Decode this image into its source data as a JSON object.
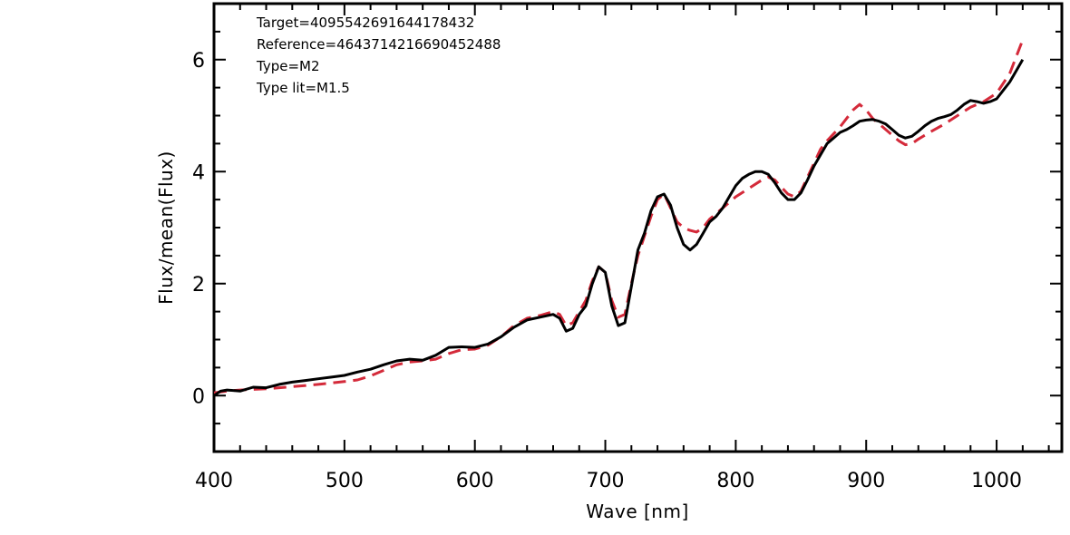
{
  "chart_data": {
    "type": "line",
    "xlabel": "Wave [nm]",
    "ylabel": "Flux/mean(Flux)",
    "xlim": [
      400,
      1050
    ],
    "ylim": [
      -1,
      7
    ],
    "xticks": [
      400,
      500,
      600,
      700,
      800,
      900,
      1000
    ],
    "yticks": [
      0,
      2,
      4,
      6
    ],
    "grid": false,
    "annotations": [
      "Target=4095542691644178432",
      "Reference=4643714216690452488",
      "Type=M2",
      "Type lit=M1.5"
    ],
    "series": [
      {
        "style": "solid",
        "color": "#000000",
        "x": [
          400,
          405,
          410,
          420,
          430,
          440,
          450,
          460,
          470,
          480,
          490,
          500,
          510,
          520,
          530,
          540,
          550,
          560,
          570,
          580,
          590,
          600,
          610,
          620,
          630,
          640,
          650,
          660,
          665,
          670,
          675,
          680,
          685,
          690,
          695,
          700,
          705,
          710,
          715,
          720,
          725,
          730,
          735,
          740,
          745,
          750,
          755,
          760,
          765,
          770,
          775,
          780,
          785,
          790,
          795,
          800,
          805,
          810,
          815,
          820,
          825,
          830,
          835,
          840,
          845,
          850,
          855,
          860,
          865,
          870,
          875,
          880,
          885,
          890,
          895,
          900,
          905,
          910,
          915,
          920,
          925,
          930,
          935,
          940,
          945,
          950,
          955,
          960,
          965,
          970,
          975,
          980,
          985,
          990,
          995,
          1000,
          1005,
          1010,
          1015,
          1020
        ],
        "y": [
          0.0,
          0.08,
          0.1,
          0.08,
          0.15,
          0.14,
          0.2,
          0.24,
          0.27,
          0.3,
          0.33,
          0.36,
          0.42,
          0.47,
          0.55,
          0.62,
          0.65,
          0.63,
          0.72,
          0.86,
          0.87,
          0.86,
          0.92,
          1.05,
          1.22,
          1.35,
          1.4,
          1.45,
          1.38,
          1.15,
          1.2,
          1.45,
          1.6,
          2.0,
          2.3,
          2.2,
          1.6,
          1.25,
          1.3,
          1.95,
          2.6,
          2.9,
          3.3,
          3.55,
          3.6,
          3.4,
          3.0,
          2.7,
          2.6,
          2.7,
          2.9,
          3.1,
          3.2,
          3.35,
          3.55,
          3.75,
          3.88,
          3.95,
          4.0,
          4.0,
          3.95,
          3.8,
          3.62,
          3.5,
          3.5,
          3.62,
          3.85,
          4.1,
          4.3,
          4.5,
          4.6,
          4.7,
          4.75,
          4.82,
          4.9,
          4.92,
          4.93,
          4.9,
          4.85,
          4.75,
          4.65,
          4.6,
          4.63,
          4.72,
          4.82,
          4.9,
          4.95,
          4.98,
          5.02,
          5.1,
          5.2,
          5.27,
          5.25,
          5.22,
          5.25,
          5.3,
          5.45,
          5.6,
          5.8,
          6.0
        ]
      },
      {
        "style": "dashed",
        "color": "#d42a3a",
        "x": [
          400,
          410,
          420,
          440,
          460,
          480,
          500,
          510,
          520,
          530,
          540,
          550,
          560,
          570,
          580,
          590,
          600,
          610,
          620,
          630,
          640,
          650,
          660,
          665,
          670,
          675,
          680,
          685,
          690,
          695,
          700,
          705,
          710,
          715,
          720,
          725,
          730,
          735,
          740,
          745,
          750,
          755,
          760,
          765,
          770,
          775,
          780,
          785,
          790,
          800,
          810,
          820,
          825,
          830,
          835,
          840,
          845,
          850,
          855,
          860,
          865,
          870,
          880,
          890,
          895,
          900,
          905,
          910,
          915,
          920,
          925,
          930,
          935,
          940,
          945,
          950,
          960,
          970,
          980,
          990,
          1000,
          1010,
          1020
        ],
        "y": [
          0.05,
          0.08,
          0.1,
          0.12,
          0.16,
          0.2,
          0.25,
          0.28,
          0.35,
          0.45,
          0.55,
          0.6,
          0.62,
          0.65,
          0.75,
          0.82,
          0.83,
          0.9,
          1.05,
          1.25,
          1.38,
          1.43,
          1.5,
          1.45,
          1.25,
          1.3,
          1.5,
          1.7,
          2.05,
          2.3,
          2.2,
          1.7,
          1.4,
          1.45,
          2.0,
          2.5,
          2.85,
          3.2,
          3.5,
          3.6,
          3.35,
          3.1,
          3.0,
          2.95,
          2.92,
          3.0,
          3.15,
          3.25,
          3.35,
          3.55,
          3.7,
          3.85,
          3.9,
          3.85,
          3.72,
          3.6,
          3.55,
          3.65,
          3.9,
          4.15,
          4.4,
          4.55,
          4.8,
          5.1,
          5.2,
          5.1,
          4.95,
          4.85,
          4.75,
          4.65,
          4.55,
          4.48,
          4.5,
          4.58,
          4.65,
          4.72,
          4.85,
          5.0,
          5.15,
          5.25,
          5.4,
          5.75,
          6.35
        ]
      }
    ]
  }
}
